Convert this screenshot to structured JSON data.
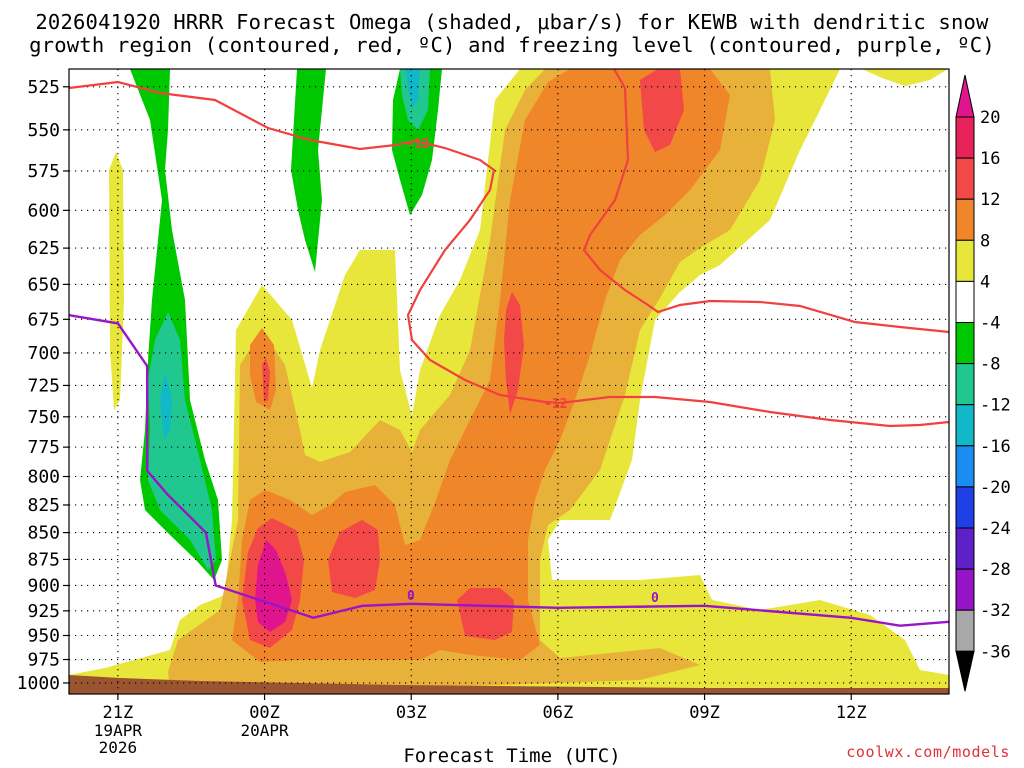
{
  "title": {
    "line1": "2026041920 HRRR Forecast Omega (shaded, μbar/s) for KEWB with dendritic snow",
    "line2": "growth region (contoured, red, ºC) and freezing level (contoured, purple, ºC)"
  },
  "credit": "coolwx.com/models",
  "chart_data": {
    "type": "heatmap",
    "title": "2026041920 HRRR Forecast Omega (shaded, μbar/s) for KEWB with dendritic snow growth region (contoured, red, ºC) and freezing level (contoured, purple, ºC)",
    "xlabel": "Forecast Time (UTC)",
    "ylabel": "",
    "x_ticks": [
      {
        "hour": 0,
        "label": "21Z",
        "sub": [
          "19APR",
          "2026"
        ]
      },
      {
        "hour": 3,
        "label": "00Z",
        "sub": [
          "20APR"
        ]
      },
      {
        "hour": 6,
        "label": "03Z",
        "sub": []
      },
      {
        "hour": 9,
        "label": "06Z",
        "sub": []
      },
      {
        "hour": 12,
        "label": "09Z",
        "sub": []
      },
      {
        "hour": 15,
        "label": "12Z",
        "sub": []
      }
    ],
    "x_range_hours": [
      -1,
      17
    ],
    "y_scale": "log-pressure",
    "y_range_mb": [
      1012,
      515
    ],
    "y_ticks": [
      525,
      550,
      575,
      600,
      625,
      650,
      675,
      700,
      725,
      750,
      775,
      800,
      825,
      850,
      875,
      900,
      925,
      950,
      975,
      1000
    ],
    "grid": "dotted",
    "colorbar": {
      "labels": [
        "20",
        "16",
        "12",
        "8",
        "4",
        "-4",
        "-8",
        "-12",
        "-16",
        "-20",
        "-24",
        "-28",
        "-32",
        "-36"
      ],
      "bands": [
        {
          "range": "16 to 20",
          "color": "#e8225a"
        },
        {
          "range": "12 to 16",
          "color": "#f24848"
        },
        {
          "range": "8 to 12",
          "color": "#f0862a"
        },
        {
          "range": "4 to 8",
          "color": "#e8b23a"
        },
        {
          "range": "-4 to 4",
          "color": "#ffffff"
        },
        {
          "range": "-8 to -4",
          "color": "#00c800"
        },
        {
          "range": "-12 to -8",
          "color": "#20c890"
        },
        {
          "range": "-16 to -12",
          "color": "#10b8c8"
        },
        {
          "range": "-20 to -16",
          "color": "#1a8ef0"
        },
        {
          "range": "-24 to -20",
          "color": "#1e40e6"
        },
        {
          "range": "-28 to -24",
          "color": "#6020c8"
        },
        {
          "range": "-32 to -28",
          "color": "#9614c8"
        },
        {
          "range": "-36 to -32",
          "color": "#a8a8a8"
        }
      ],
      "top_color": "#e0148c",
      "bottom_color": "#000000",
      "band_4_8_color": "#e8e63a"
    },
    "contours": {
      "dgz_color": "#f04040",
      "dgz_labels": [
        "-12",
        "-12"
      ],
      "freezing_color": "#9a14c8",
      "freezing_labels": [
        "0",
        "0"
      ],
      "freezing_level_mb": [
        {
          "hour": -1.0,
          "p": 672
        },
        {
          "hour": 0.0,
          "p": 678
        },
        {
          "hour": 0.6,
          "p": 710
        },
        {
          "hour": 0.6,
          "p": 795
        },
        {
          "hour": 1.0,
          "p": 815
        },
        {
          "hour": 1.8,
          "p": 850
        },
        {
          "hour": 2.0,
          "p": 900
        },
        {
          "hour": 4.0,
          "p": 932
        },
        {
          "hour": 5.0,
          "p": 920
        },
        {
          "hour": 6.0,
          "p": 918
        },
        {
          "hour": 9.0,
          "p": 922
        },
        {
          "hour": 12.0,
          "p": 920
        },
        {
          "hour": 15.0,
          "p": 932
        },
        {
          "hour": 16.0,
          "p": 940
        },
        {
          "hour": 17.0,
          "p": 936
        }
      ]
    },
    "terrain_color": "#9a5530"
  }
}
